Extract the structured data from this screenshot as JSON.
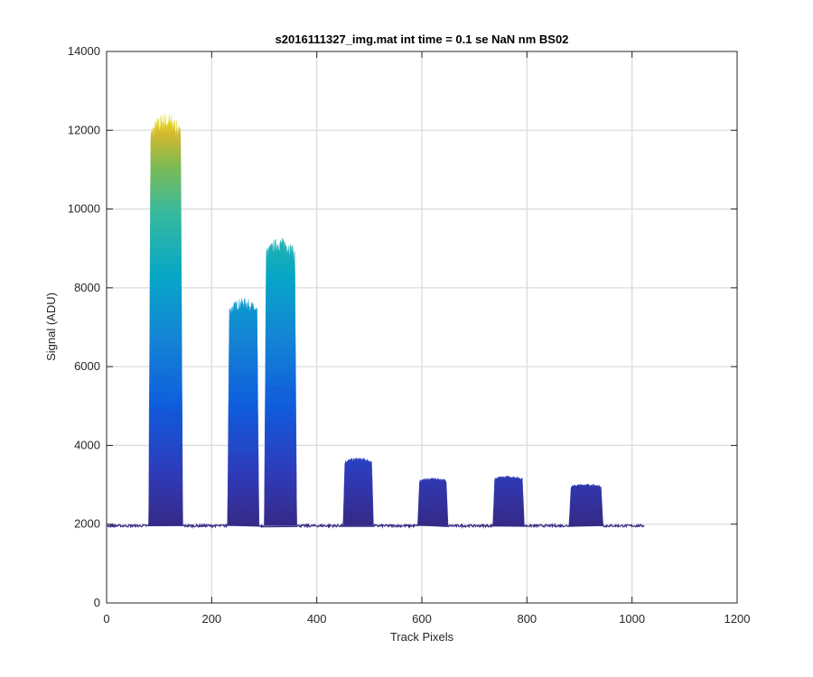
{
  "chart_data": {
    "type": "area",
    "title": "s2016111327_img.mat int time = 0.1 se  NaN nm BS02",
    "xlabel": "Track Pixels",
    "ylabel": "Signal (ADU)",
    "xlim": [
      0,
      1200
    ],
    "ylim": [
      0,
      14000
    ],
    "xticks": [
      "0",
      "200",
      "400",
      "600",
      "800",
      "1000",
      "1200"
    ],
    "yticks": [
      "0",
      "2000",
      "4000",
      "6000",
      "8000",
      "10000",
      "12000",
      "14000"
    ],
    "grid": true,
    "colormap": "parula",
    "x_range": [
      0,
      1023
    ],
    "baseline": 1960,
    "peaks": [
      {
        "x_start": 80,
        "x_end": 145,
        "peak": 12200,
        "inner_level": 4800
      },
      {
        "x_start": 230,
        "x_end": 290,
        "peak": 7600,
        "inner_level": 3900
      },
      {
        "x_start": 300,
        "x_end": 362,
        "peak": 9100,
        "inner_level": 5400
      },
      {
        "x_start": 450,
        "x_end": 508,
        "peak": 3650
      },
      {
        "x_start": 592,
        "x_end": 650,
        "peak": 3150
      },
      {
        "x_start": 735,
        "x_end": 795,
        "peak": 3200
      },
      {
        "x_start": 880,
        "x_end": 945,
        "peak": 3000
      }
    ],
    "colors": {
      "low": "#352a87",
      "blue": "#0f5cdd",
      "cyan": "#06a7c6",
      "green": "#7dba54",
      "yellow": "#f9fb0e"
    }
  }
}
